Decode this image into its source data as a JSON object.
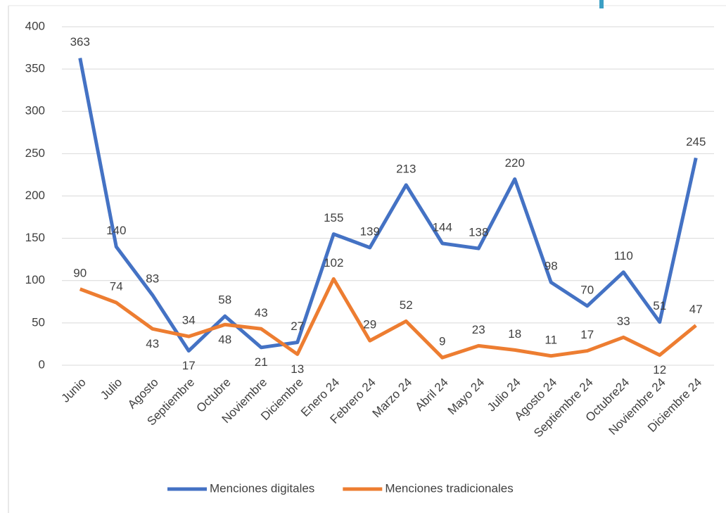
{
  "chart_data": {
    "type": "line",
    "categories": [
      "Junio",
      "Julio",
      "Agosto",
      "Septiembre",
      "Octubre",
      "Noviembre",
      "Diciembre",
      "Enero 24",
      "Febrero 24",
      "Marzo 24",
      "Abril 24",
      "Mayo 24",
      "Julio 24",
      "Agosto 24",
      "Septiembre 24",
      "Octubre24",
      "Noviembre 24",
      "Diciembre 24"
    ],
    "series": [
      {
        "name": "Menciones digitales",
        "color": "#4472c4",
        "values": [
          363,
          140,
          83,
          17,
          58,
          21,
          27,
          155,
          139,
          213,
          144,
          138,
          220,
          98,
          70,
          110,
          51,
          245
        ]
      },
      {
        "name": "Menciones tradicionales",
        "color": "#ed7d31",
        "values": [
          90,
          74,
          43,
          34,
          48,
          43,
          13,
          102,
          29,
          52,
          9,
          23,
          18,
          11,
          17,
          33,
          12,
          47
        ]
      }
    ],
    "ylim": [
      0,
      400
    ],
    "yticks": [
      0,
      50,
      100,
      150,
      200,
      250,
      300,
      350,
      400
    ],
    "grid": true,
    "legend": "bottom"
  }
}
